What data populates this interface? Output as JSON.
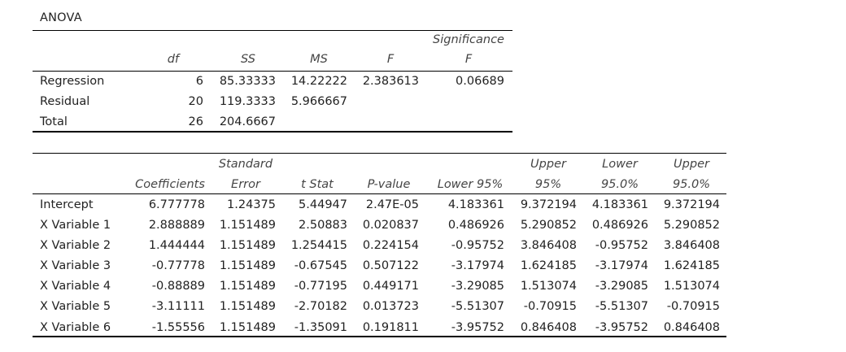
{
  "anova": {
    "title": "ANOVA",
    "headers": {
      "df": "df",
      "ss": "SS",
      "ms": "MS",
      "f": "F",
      "sig_line1": "Significance",
      "sig_line2": "F"
    },
    "rows": [
      {
        "label": "Regression",
        "df": "6",
        "ss": "85.33333",
        "ms": "14.22222",
        "f": "2.383613",
        "sig": "0.06689"
      },
      {
        "label": "Residual",
        "df": "20",
        "ss": "119.3333",
        "ms": "5.966667",
        "f": "",
        "sig": ""
      },
      {
        "label": "Total",
        "df": "26",
        "ss": "204.6667",
        "ms": "",
        "f": "",
        "sig": ""
      }
    ]
  },
  "coef": {
    "headers": {
      "coefficients": "Coefficients",
      "std_err_line1": "Standard",
      "std_err_line2": "Error",
      "tstat": "t Stat",
      "pvalue": "P-value",
      "lower95": "Lower 95%",
      "upper95_line1": "Upper",
      "upper95_line2": "95%",
      "lower950_line1": "Lower",
      "lower950_line2": "95.0%",
      "upper950_line1": "Upper",
      "upper950_line2": "95.0%"
    },
    "rows": [
      {
        "label": "Intercept",
        "coef": "6.777778",
        "se": "1.24375",
        "t": "5.44947",
        "p": "2.47E-05",
        "l95": "4.183361",
        "u95": "9.372194",
        "l950": "4.183361",
        "u950": "9.372194"
      },
      {
        "label": "X Variable 1",
        "coef": "2.888889",
        "se": "1.151489",
        "t": "2.50883",
        "p": "0.020837",
        "l95": "0.486926",
        "u95": "5.290852",
        "l950": "0.486926",
        "u950": "5.290852"
      },
      {
        "label": "X Variable 2",
        "coef": "1.444444",
        "se": "1.151489",
        "t": "1.254415",
        "p": "0.224154",
        "l95": "-0.95752",
        "u95": "3.846408",
        "l950": "-0.95752",
        "u950": "3.846408"
      },
      {
        "label": "X Variable 3",
        "coef": "-0.77778",
        "se": "1.151489",
        "t": "-0.67545",
        "p": "0.507122",
        "l95": "-3.17974",
        "u95": "1.624185",
        "l950": "-3.17974",
        "u950": "1.624185"
      },
      {
        "label": "X Variable 4",
        "coef": "-0.88889",
        "se": "1.151489",
        "t": "-0.77195",
        "p": "0.449171",
        "l95": "-3.29085",
        "u95": "1.513074",
        "l950": "-3.29085",
        "u950": "1.513074"
      },
      {
        "label": "X Variable 5",
        "coef": "-3.11111",
        "se": "1.151489",
        "t": "-2.70182",
        "p": "0.013723",
        "l95": "-5.51307",
        "u95": "-0.70915",
        "l950": "-5.51307",
        "u950": "-0.70915"
      },
      {
        "label": "X Variable 6",
        "coef": "-1.55556",
        "se": "1.151489",
        "t": "-1.35091",
        "p": "0.191811",
        "l95": "-3.95752",
        "u95": "0.846408",
        "l950": "-3.95752",
        "u950": "0.846408"
      }
    ]
  }
}
